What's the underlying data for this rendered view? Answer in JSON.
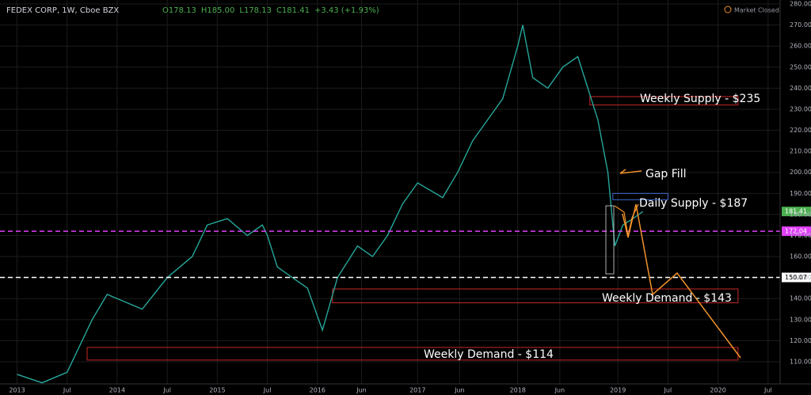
{
  "chart_data": {
    "type": "line",
    "title": "FEDEX CORP, 1W, Cboe BZX",
    "ohlc": [
      "O178.13",
      "H185.00",
      "L178.13",
      "C181.41",
      "+3.43 (+1.93%)"
    ],
    "status": "Market Closed",
    "x": [
      2013.0,
      2013.25,
      2013.5,
      2013.75,
      2013.9,
      2014.0,
      2014.25,
      2014.5,
      2014.75,
      2014.9,
      2015.1,
      2015.3,
      2015.45,
      2015.5,
      2015.6,
      2015.75,
      2015.9,
      2016.05,
      2016.2,
      2016.4,
      2016.55,
      2016.7,
      2016.85,
      2017.0,
      2017.25,
      2017.4,
      2017.55,
      2017.7,
      2017.85,
      2018.0,
      2018.05,
      2018.15,
      2018.3,
      2018.45,
      2018.6,
      2018.7,
      2018.8,
      2018.9,
      2018.97,
      2019.05,
      2019.15,
      2019.25
    ],
    "series": [
      {
        "color": "#26a69a",
        "values": [
          104,
          100,
          105,
          130,
          142,
          140,
          135,
          150,
          160,
          175,
          178,
          170,
          175,
          170,
          155,
          150,
          145,
          125,
          150,
          165,
          160,
          170,
          185,
          195,
          188,
          200,
          215,
          225,
          235,
          260,
          270,
          245,
          240,
          250,
          255,
          240,
          225,
          200,
          165,
          175,
          178,
          181.41
        ]
      }
    ],
    "xlim": [
      2012.83,
      2020.62
    ],
    "ylim": [
      94.2,
      281.9
    ],
    "xticks": [
      2013,
      {
        "value": 2013.5,
        "label": "Jul"
      },
      2014,
      {
        "value": 2014.5,
        "label": "Jul"
      },
      2015,
      {
        "value": 2015.5,
        "label": "Jul"
      },
      2016,
      {
        "value": 2016.44,
        "label": "Jun"
      },
      2017,
      {
        "value": 2017.42,
        "label": "Jun"
      },
      2018,
      {
        "value": 2018.42,
        "label": "Jun"
      },
      2019,
      {
        "value": 2019.5,
        "label": "Jul"
      },
      2020,
      {
        "value": 2020.5,
        "label": "Jul"
      }
    ],
    "yticks": [
      {
        "value": 110,
        "label": "110.00"
      },
      {
        "value": 120,
        "label": "120.00"
      },
      {
        "value": 130,
        "label": "130.00"
      },
      {
        "value": 140,
        "label": "140.00"
      },
      {
        "value": 150,
        "label": "150.00"
      },
      {
        "value": 160,
        "label": "160.00"
      },
      {
        "value": 170,
        "label": "170.00"
      },
      {
        "value": 180,
        "label": "180.00"
      },
      {
        "value": 190,
        "label": "190.00"
      },
      {
        "value": 200,
        "label": "200.00"
      },
      {
        "value": 210,
        "label": "210.00"
      },
      {
        "value": 220,
        "label": "220.00"
      },
      {
        "value": 230,
        "label": "230.00"
      },
      {
        "value": 240,
        "label": "240.00"
      },
      {
        "value": 250,
        "label": "250.00"
      },
      {
        "value": 260,
        "label": "260.00"
      },
      {
        "value": 270,
        "label": "270.00"
      },
      {
        "value": 280,
        "label": "280.00"
      }
    ],
    "grid": true,
    "price_lines": [
      {
        "value": 181.41,
        "color": "#4caf50",
        "dashed": false
      },
      {
        "value": 172.04,
        "color": "#e040fb",
        "dashed": true
      },
      {
        "value": 150.07,
        "color": "#ffffff",
        "dashed": true
      }
    ],
    "zones": [
      {
        "label": "Weekly Supply - $235",
        "range": [
          232,
          236
        ],
        "x_range": [
          2018.72,
          2020.2
        ],
        "color": "#c62828"
      },
      {
        "label": "Daily Supply - $187",
        "range": [
          187,
          190
        ],
        "x_range": [
          2018.95,
          2019.5
        ],
        "color": "#3f6fd1"
      },
      {
        "label": "Weekly Demand - $143",
        "range": [
          138,
          144.6
        ],
        "x_range": [
          2016.15,
          2020.2
        ],
        "color": "#c62828"
      },
      {
        "label": "Weekly Demand - $114",
        "range": [
          110.8,
          116.8
        ],
        "x_range": [
          2013.7,
          2020.2
        ],
        "color": "#c62828"
      }
    ],
    "annotations": [
      "Gap Fill"
    ]
  }
}
